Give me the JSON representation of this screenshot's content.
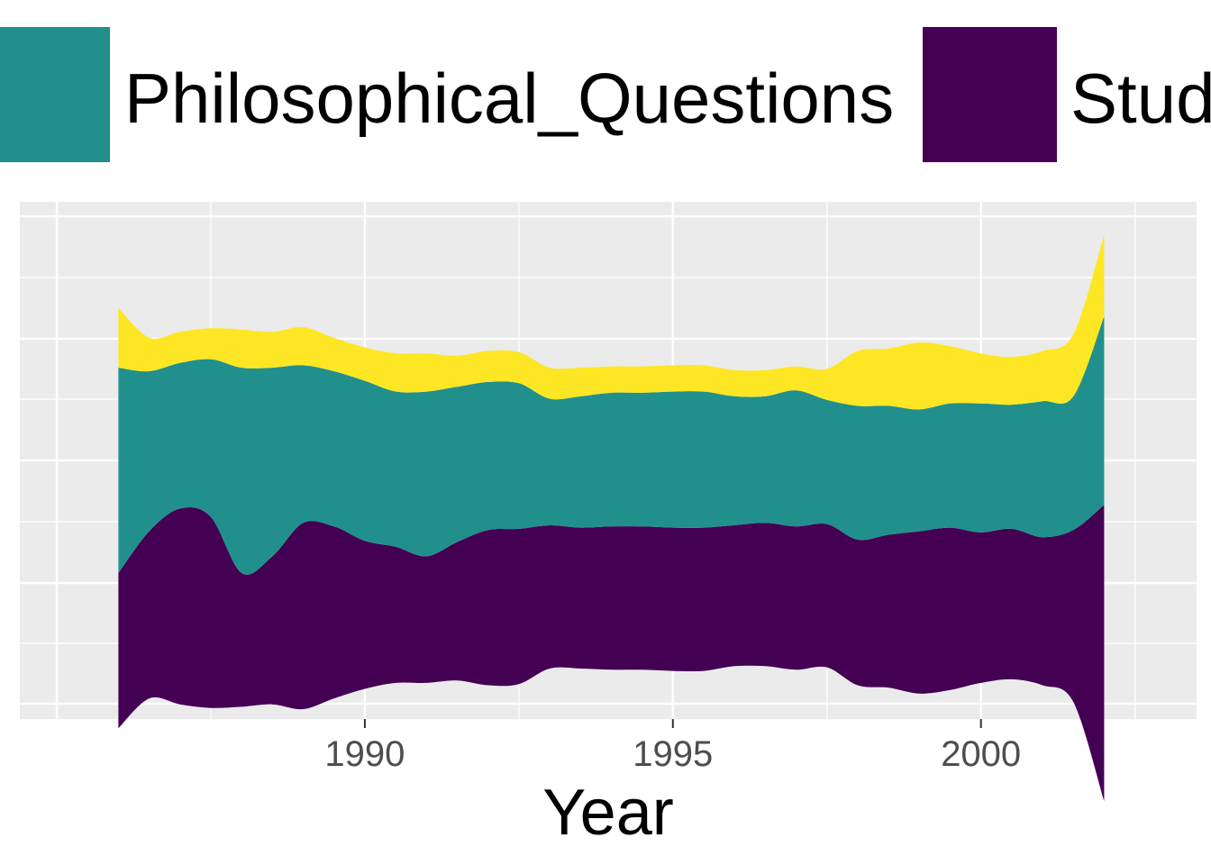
{
  "chart_data": {
    "type": "area",
    "subtype": "streamgraph",
    "title": "",
    "xlabel": "Year",
    "ylabel": "",
    "xlim": [
      1984.4,
      2003.5
    ],
    "x_ticks": [
      1990,
      1995,
      2000
    ],
    "x_tick_labels": [
      "1990",
      "1995",
      "2000"
    ],
    "y_ticks_shown": false,
    "grid": true,
    "legend_position": "top",
    "x": [
      1986,
      1986.5,
      1987,
      1987.5,
      1988,
      1988.5,
      1989,
      1989.5,
      1990,
      1990.5,
      1991,
      1991.5,
      1992,
      1992.5,
      1993,
      1993.5,
      1994,
      1994.5,
      1995,
      1995.5,
      1996,
      1996.5,
      1997,
      1997.5,
      1998,
      1998.5,
      1999,
      1999.5,
      2000,
      2000.5,
      2001,
      2001.5,
      2002
    ],
    "series": [
      {
        "name": "Stud",
        "color": "#440154",
        "values": [
          6.5,
          7.0,
          8.2,
          8.0,
          5.6,
          6.2,
          7.8,
          7.2,
          6.2,
          5.7,
          5.3,
          5.8,
          6.5,
          6.5,
          6.0,
          5.9,
          6.0,
          6.0,
          6.0,
          6.0,
          5.9,
          6.0,
          6.0,
          6.0,
          6.1,
          6.4,
          6.8,
          6.8,
          6.3,
          6.3,
          6.2,
          7.2,
          12.4
        ]
      },
      {
        "name": "Philosophical_Questions",
        "color": "#21908c",
        "values": [
          8.6,
          6.7,
          6.1,
          6.6,
          8.6,
          7.9,
          6.6,
          6.5,
          6.7,
          6.5,
          6.9,
          6.5,
          6.2,
          6.1,
          5.3,
          5.5,
          5.6,
          5.6,
          5.7,
          5.7,
          5.4,
          5.3,
          5.7,
          5.2,
          5.6,
          5.4,
          5.1,
          5.2,
          5.4,
          5.2,
          5.7,
          5.6,
          7.9
        ]
      },
      {
        "name": "",
        "color": "#fde725",
        "values": [
          2.5,
          1.4,
          1.3,
          1.3,
          1.6,
          1.5,
          1.6,
          1.4,
          1.4,
          1.6,
          1.6,
          1.3,
          1.3,
          1.3,
          1.3,
          1.2,
          1.1,
          1.1,
          1.1,
          1.1,
          1.1,
          1.1,
          1.0,
          1.3,
          2.3,
          2.4,
          2.8,
          2.4,
          2.1,
          2.0,
          2.1,
          2.6,
          3.4
        ]
      }
    ],
    "visible_legend": [
      "Philosophical_Questions",
      "Stud"
    ]
  }
}
